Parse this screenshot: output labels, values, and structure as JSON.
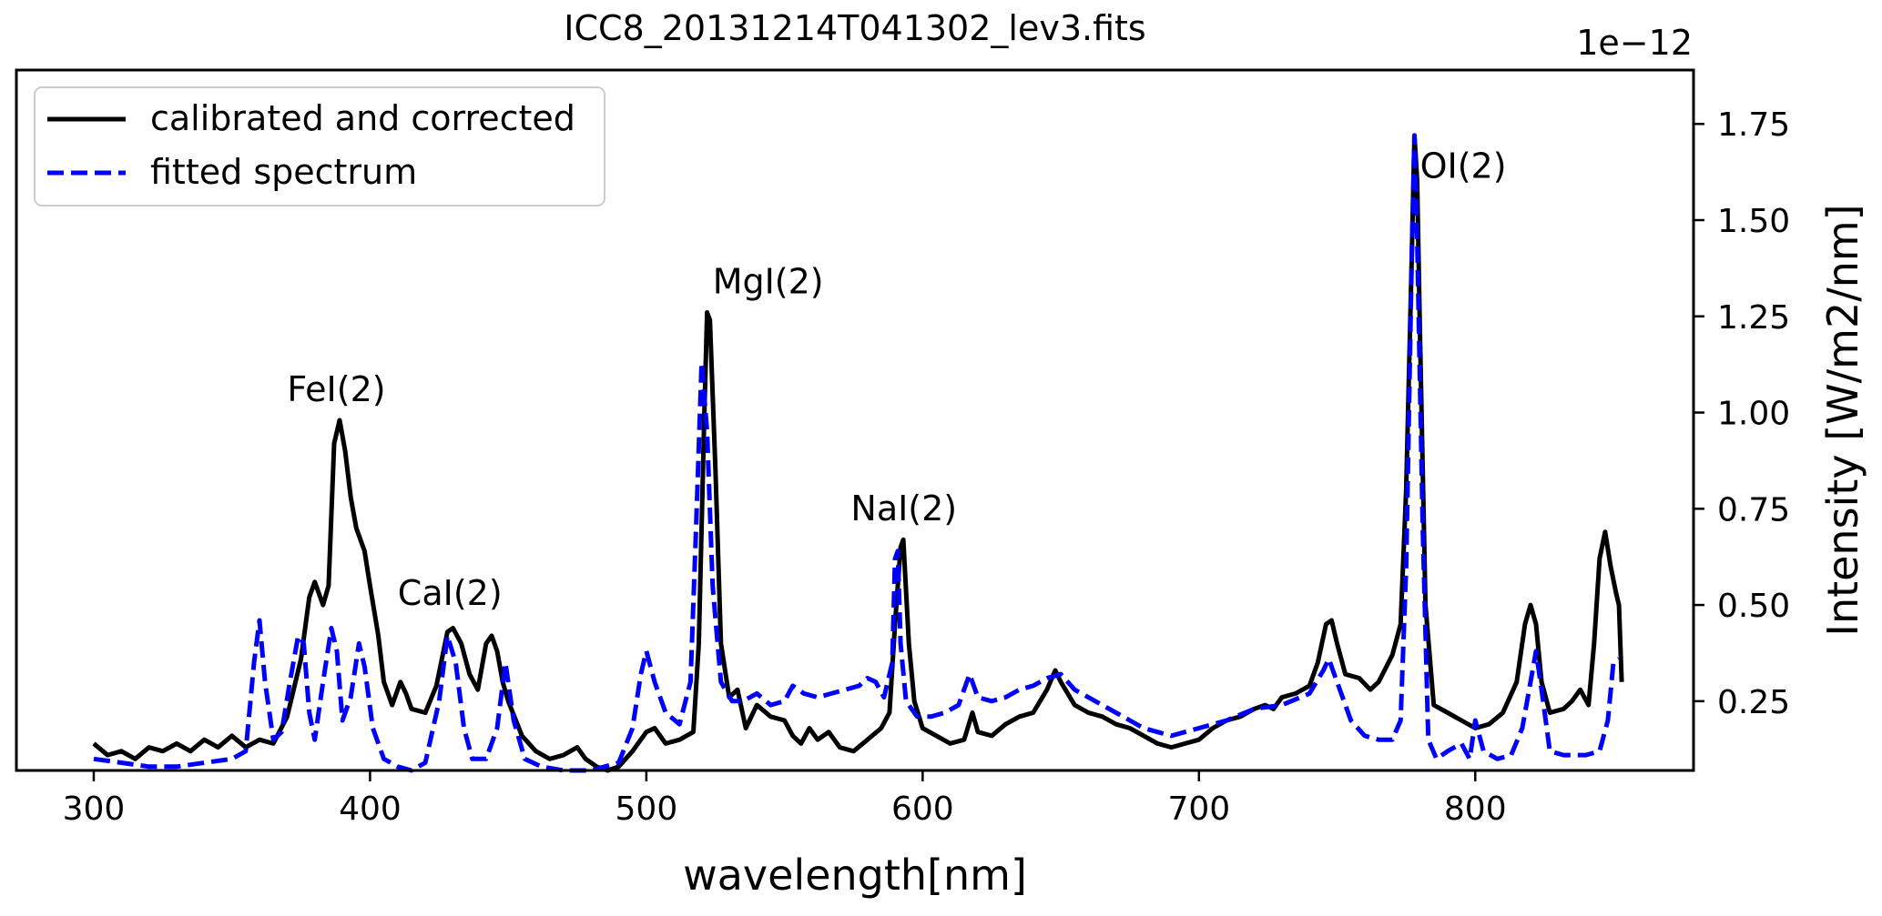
{
  "chart_data": {
    "type": "line",
    "title": "ICC8_20131214T041302_lev3.fits",
    "xlabel": "wavelength[nm]",
    "ylabel": "Intensity [W/m2/nm]",
    "y_offset_label": "1e−12",
    "y_scale": 1e-12,
    "xlim": [
      272,
      879
    ],
    "ylim": [
      0.07,
      1.89
    ],
    "x_ticks": [
      300,
      400,
      500,
      600,
      700,
      800
    ],
    "x_tick_labels": [
      "300",
      "400",
      "500",
      "600",
      "700",
      "800"
    ],
    "y_ticks": [
      0.25,
      0.5,
      0.75,
      1.0,
      1.25,
      1.5,
      1.75
    ],
    "y_tick_labels": [
      "0.25",
      "0.50",
      "0.75",
      "1.00",
      "1.25",
      "1.50",
      "1.75"
    ],
    "y_axis_position": "right",
    "grid": false,
    "legend_position": "top-left",
    "series": [
      {
        "name": "calibrated and corrected",
        "color": "#000000",
        "style": "solid",
        "points": [
          [
            300,
            0.14
          ],
          [
            305,
            0.11
          ],
          [
            310,
            0.12
          ],
          [
            315,
            0.1
          ],
          [
            320,
            0.13
          ],
          [
            325,
            0.12
          ],
          [
            330,
            0.14
          ],
          [
            335,
            0.12
          ],
          [
            340,
            0.15
          ],
          [
            345,
            0.13
          ],
          [
            350,
            0.16
          ],
          [
            355,
            0.13
          ],
          [
            360,
            0.15
          ],
          [
            365,
            0.14
          ],
          [
            370,
            0.21
          ],
          [
            375,
            0.36
          ],
          [
            378,
            0.52
          ],
          [
            380,
            0.56
          ],
          [
            383,
            0.5
          ],
          [
            385,
            0.55
          ],
          [
            387,
            0.92
          ],
          [
            389,
            0.98
          ],
          [
            391,
            0.9
          ],
          [
            393,
            0.78
          ],
          [
            395,
            0.7
          ],
          [
            398,
            0.64
          ],
          [
            400,
            0.55
          ],
          [
            403,
            0.42
          ],
          [
            405,
            0.3
          ],
          [
            408,
            0.24
          ],
          [
            411,
            0.3
          ],
          [
            413,
            0.27
          ],
          [
            415,
            0.23
          ],
          [
            420,
            0.22
          ],
          [
            424,
            0.29
          ],
          [
            428,
            0.43
          ],
          [
            430,
            0.44
          ],
          [
            433,
            0.4
          ],
          [
            436,
            0.32
          ],
          [
            439,
            0.28
          ],
          [
            442,
            0.4
          ],
          [
            444,
            0.42
          ],
          [
            446,
            0.38
          ],
          [
            448,
            0.3
          ],
          [
            450,
            0.25
          ],
          [
            455,
            0.16
          ],
          [
            460,
            0.12
          ],
          [
            465,
            0.1
          ],
          [
            470,
            0.11
          ],
          [
            475,
            0.13
          ],
          [
            478,
            0.1
          ],
          [
            482,
            0.08
          ],
          [
            486,
            0.07
          ],
          [
            490,
            0.08
          ],
          [
            495,
            0.12
          ],
          [
            500,
            0.17
          ],
          [
            503,
            0.18
          ],
          [
            507,
            0.14
          ],
          [
            512,
            0.15
          ],
          [
            517,
            0.17
          ],
          [
            519,
            0.4
          ],
          [
            521,
            1.0
          ],
          [
            522,
            1.26
          ],
          [
            523,
            1.24
          ],
          [
            525,
            0.85
          ],
          [
            527,
            0.4
          ],
          [
            530,
            0.26
          ],
          [
            533,
            0.28
          ],
          [
            536,
            0.18
          ],
          [
            540,
            0.24
          ],
          [
            545,
            0.21
          ],
          [
            550,
            0.2
          ],
          [
            553,
            0.16
          ],
          [
            556,
            0.14
          ],
          [
            559,
            0.18
          ],
          [
            562,
            0.15
          ],
          [
            566,
            0.17
          ],
          [
            570,
            0.13
          ],
          [
            575,
            0.12
          ],
          [
            580,
            0.15
          ],
          [
            585,
            0.18
          ],
          [
            588,
            0.22
          ],
          [
            590,
            0.45
          ],
          [
            592,
            0.65
          ],
          [
            593,
            0.67
          ],
          [
            595,
            0.4
          ],
          [
            597,
            0.25
          ],
          [
            600,
            0.18
          ],
          [
            605,
            0.16
          ],
          [
            610,
            0.14
          ],
          [
            615,
            0.15
          ],
          [
            618,
            0.22
          ],
          [
            620,
            0.17
          ],
          [
            625,
            0.16
          ],
          [
            630,
            0.19
          ],
          [
            635,
            0.21
          ],
          [
            640,
            0.22
          ],
          [
            645,
            0.28
          ],
          [
            648,
            0.33
          ],
          [
            650,
            0.3
          ],
          [
            655,
            0.24
          ],
          [
            660,
            0.22
          ],
          [
            665,
            0.21
          ],
          [
            670,
            0.19
          ],
          [
            675,
            0.18
          ],
          [
            680,
            0.16
          ],
          [
            685,
            0.14
          ],
          [
            690,
            0.13
          ],
          [
            695,
            0.14
          ],
          [
            700,
            0.15
          ],
          [
            705,
            0.18
          ],
          [
            710,
            0.2
          ],
          [
            715,
            0.21
          ],
          [
            720,
            0.23
          ],
          [
            724,
            0.24
          ],
          [
            727,
            0.23
          ],
          [
            730,
            0.26
          ],
          [
            735,
            0.27
          ],
          [
            740,
            0.29
          ],
          [
            743,
            0.35
          ],
          [
            746,
            0.45
          ],
          [
            748,
            0.46
          ],
          [
            750,
            0.4
          ],
          [
            753,
            0.32
          ],
          [
            758,
            0.31
          ],
          [
            762,
            0.28
          ],
          [
            765,
            0.3
          ],
          [
            770,
            0.37
          ],
          [
            773,
            0.45
          ],
          [
            775,
            0.8
          ],
          [
            777,
            1.4
          ],
          [
            778,
            1.72
          ],
          [
            779,
            1.6
          ],
          [
            780,
            1.2
          ],
          [
            782,
            0.5
          ],
          [
            785,
            0.24
          ],
          [
            790,
            0.22
          ],
          [
            795,
            0.2
          ],
          [
            800,
            0.18
          ],
          [
            805,
            0.19
          ],
          [
            810,
            0.22
          ],
          [
            815,
            0.3
          ],
          [
            818,
            0.45
          ],
          [
            820,
            0.5
          ],
          [
            822,
            0.45
          ],
          [
            824,
            0.3
          ],
          [
            827,
            0.22
          ],
          [
            832,
            0.23
          ],
          [
            835,
            0.25
          ],
          [
            838,
            0.28
          ],
          [
            841,
            0.24
          ],
          [
            843,
            0.4
          ],
          [
            845,
            0.62
          ],
          [
            847,
            0.69
          ],
          [
            849,
            0.6
          ],
          [
            851,
            0.53
          ],
          [
            852,
            0.5
          ],
          [
            853,
            0.3
          ]
        ]
      },
      {
        "name": "fitted spectrum",
        "color": "#0000ff",
        "style": "dashed",
        "points": [
          [
            300,
            0.1
          ],
          [
            310,
            0.09
          ],
          [
            320,
            0.08
          ],
          [
            330,
            0.08
          ],
          [
            340,
            0.09
          ],
          [
            350,
            0.1
          ],
          [
            355,
            0.12
          ],
          [
            358,
            0.35
          ],
          [
            360,
            0.46
          ],
          [
            362,
            0.3
          ],
          [
            365,
            0.15
          ],
          [
            368,
            0.17
          ],
          [
            371,
            0.3
          ],
          [
            374,
            0.42
          ],
          [
            376,
            0.4
          ],
          [
            378,
            0.22
          ],
          [
            380,
            0.15
          ],
          [
            383,
            0.3
          ],
          [
            386,
            0.44
          ],
          [
            388,
            0.38
          ],
          [
            390,
            0.2
          ],
          [
            393,
            0.26
          ],
          [
            396,
            0.4
          ],
          [
            398,
            0.34
          ],
          [
            401,
            0.18
          ],
          [
            405,
            0.1
          ],
          [
            410,
            0.08
          ],
          [
            415,
            0.07
          ],
          [
            420,
            0.09
          ],
          [
            425,
            0.25
          ],
          [
            428,
            0.42
          ],
          [
            431,
            0.35
          ],
          [
            434,
            0.18
          ],
          [
            437,
            0.1
          ],
          [
            442,
            0.1
          ],
          [
            446,
            0.18
          ],
          [
            449,
            0.35
          ],
          [
            452,
            0.2
          ],
          [
            456,
            0.1
          ],
          [
            462,
            0.08
          ],
          [
            470,
            0.07
          ],
          [
            480,
            0.07
          ],
          [
            490,
            0.09
          ],
          [
            495,
            0.18
          ],
          [
            498,
            0.32
          ],
          [
            500,
            0.38
          ],
          [
            503,
            0.3
          ],
          [
            507,
            0.22
          ],
          [
            512,
            0.19
          ],
          [
            516,
            0.3
          ],
          [
            518,
            0.7
          ],
          [
            520,
            1.13
          ],
          [
            522,
            0.95
          ],
          [
            524,
            0.55
          ],
          [
            527,
            0.3
          ],
          [
            531,
            0.25
          ],
          [
            535,
            0.25
          ],
          [
            540,
            0.27
          ],
          [
            545,
            0.24
          ],
          [
            550,
            0.25
          ],
          [
            553,
            0.29
          ],
          [
            557,
            0.27
          ],
          [
            562,
            0.26
          ],
          [
            567,
            0.27
          ],
          [
            572,
            0.28
          ],
          [
            577,
            0.29
          ],
          [
            580,
            0.31
          ],
          [
            583,
            0.3
          ],
          [
            586,
            0.26
          ],
          [
            589,
            0.35
          ],
          [
            590,
            0.62
          ],
          [
            591,
            0.64
          ],
          [
            592,
            0.4
          ],
          [
            594,
            0.25
          ],
          [
            598,
            0.21
          ],
          [
            603,
            0.21
          ],
          [
            608,
            0.22
          ],
          [
            613,
            0.24
          ],
          [
            617,
            0.32
          ],
          [
            620,
            0.26
          ],
          [
            625,
            0.25
          ],
          [
            630,
            0.26
          ],
          [
            635,
            0.28
          ],
          [
            640,
            0.29
          ],
          [
            645,
            0.31
          ],
          [
            650,
            0.32
          ],
          [
            655,
            0.28
          ],
          [
            660,
            0.26
          ],
          [
            665,
            0.24
          ],
          [
            670,
            0.22
          ],
          [
            675,
            0.2
          ],
          [
            680,
            0.18
          ],
          [
            685,
            0.17
          ],
          [
            690,
            0.16
          ],
          [
            695,
            0.17
          ],
          [
            700,
            0.18
          ],
          [
            710,
            0.2
          ],
          [
            720,
            0.23
          ],
          [
            730,
            0.24
          ],
          [
            740,
            0.27
          ],
          [
            745,
            0.33
          ],
          [
            747,
            0.36
          ],
          [
            750,
            0.3
          ],
          [
            755,
            0.2
          ],
          [
            760,
            0.16
          ],
          [
            765,
            0.15
          ],
          [
            770,
            0.15
          ],
          [
            773,
            0.2
          ],
          [
            775,
            0.6
          ],
          [
            777,
            1.4
          ],
          [
            778,
            1.72
          ],
          [
            779,
            1.45
          ],
          [
            781,
            0.7
          ],
          [
            783,
            0.15
          ],
          [
            786,
            0.1
          ],
          [
            790,
            0.12
          ],
          [
            795,
            0.14
          ],
          [
            798,
            0.1
          ],
          [
            800,
            0.2
          ],
          [
            803,
            0.12
          ],
          [
            808,
            0.1
          ],
          [
            813,
            0.11
          ],
          [
            817,
            0.18
          ],
          [
            820,
            0.3
          ],
          [
            822,
            0.38
          ],
          [
            824,
            0.28
          ],
          [
            827,
            0.12
          ],
          [
            832,
            0.11
          ],
          [
            840,
            0.11
          ],
          [
            845,
            0.12
          ],
          [
            848,
            0.2
          ],
          [
            850,
            0.35
          ],
          [
            852,
            0.36
          ]
        ]
      }
    ],
    "annotations": [
      {
        "text": "FeI(2)",
        "x": 370,
        "y": 1.03
      },
      {
        "text": "CaI(2)",
        "x": 410,
        "y": 0.5
      },
      {
        "text": "MgI(2)",
        "x": 524,
        "y": 1.31
      },
      {
        "text": "NaI(2)",
        "x": 574,
        "y": 0.72
      },
      {
        "text": "OI(2)",
        "x": 780,
        "y": 1.61
      }
    ]
  }
}
